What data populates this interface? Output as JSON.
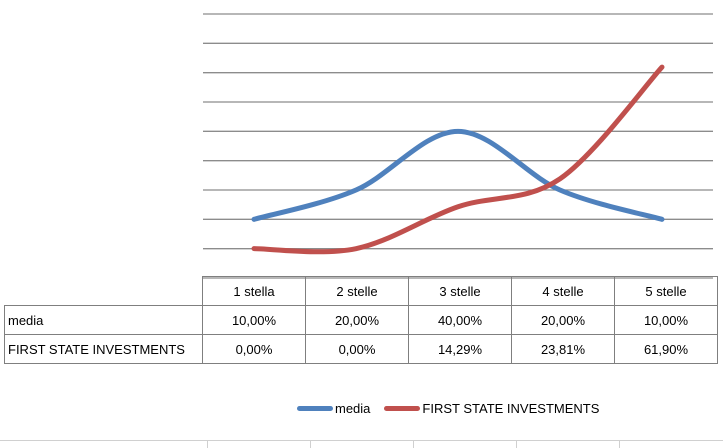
{
  "chart_data": {
    "type": "line",
    "categories": [
      "1 stella",
      "2 stelle",
      "3 stelle",
      "4 stelle",
      "5 stelle"
    ],
    "series": [
      {
        "name": "media",
        "values": [
          10,
          20,
          40,
          20,
          10
        ],
        "labels": [
          "10,00%",
          "20,00%",
          "40,00%",
          "20,00%",
          "10,00%"
        ],
        "color": "#4f81bd"
      },
      {
        "name": "FIRST STATE INVESTMENTS",
        "values": [
          0,
          0,
          14.29,
          23.81,
          61.9
        ],
        "labels": [
          "0,00%",
          "0,00%",
          "14,29%",
          "23,81%",
          "61,90%"
        ],
        "color": "#c0504d"
      }
    ],
    "ylim": [
      -10,
      80
    ],
    "grid": true,
    "smooth": true,
    "legend": "bottom",
    "data_table": true,
    "title": "",
    "xlabel": "",
    "ylabel": ""
  }
}
